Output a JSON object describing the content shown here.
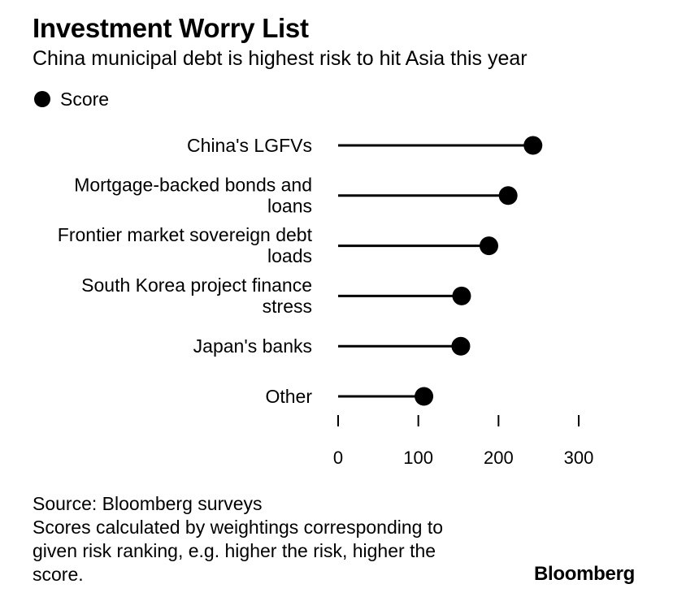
{
  "header": {
    "title": "Investment Worry List",
    "subtitle": "China municipal debt is highest risk to hit Asia this year"
  },
  "legend": {
    "label": "Score"
  },
  "chart_data": {
    "type": "lollipop",
    "orientation": "horizontal",
    "categories": [
      [
        "China's LGFVs"
      ],
      [
        "Mortgage-backed bonds and",
        "loans"
      ],
      [
        "Frontier market sovereign debt",
        "loads"
      ],
      [
        "South Korea project finance",
        "stress"
      ],
      [
        "Japan's banks"
      ],
      [
        "Other"
      ]
    ],
    "series": [
      {
        "name": "Score",
        "values": [
          243,
          212,
          188,
          154,
          153,
          107
        ]
      }
    ],
    "xlim": [
      0,
      300
    ],
    "xticks": [
      "0",
      "100",
      "200",
      "300"
    ],
    "grid": false,
    "legend_position": "top-left",
    "color": "#000000"
  },
  "footnote": {
    "lines": [
      "Source: Bloomberg surveys",
      "Scores calculated by weightings corresponding to",
      "given risk ranking, e.g. higher the risk, higher the",
      "score."
    ]
  },
  "brand": "Bloomberg"
}
